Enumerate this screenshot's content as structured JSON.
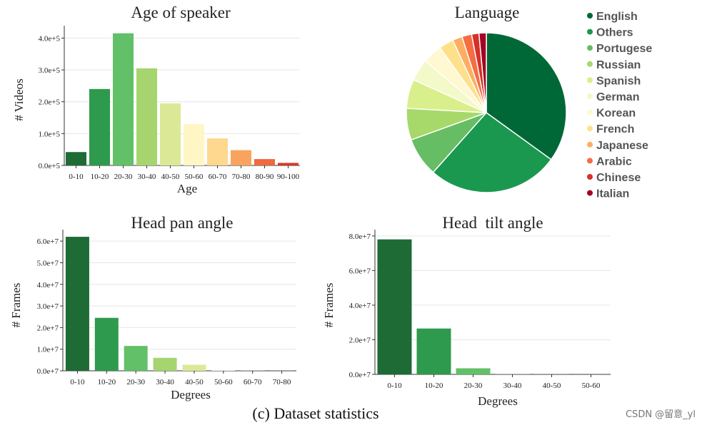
{
  "caption": "(c) Dataset statistics",
  "watermark": "CSDN @留意_yl",
  "chart_data": [
    {
      "id": "age",
      "type": "bar",
      "title": "Age of speaker",
      "xlabel": "Age",
      "ylabel": "# Videos",
      "categories": [
        "0-10",
        "10-20",
        "20-30",
        "30-40",
        "40-50",
        "50-60",
        "60-70",
        "70-80",
        "80-90",
        "90-100"
      ],
      "values": [
        42000,
        240000,
        415000,
        305000,
        195000,
        130000,
        85000,
        48000,
        20000,
        8000
      ],
      "colors": [
        "#1e6b35",
        "#2e9a4e",
        "#62c068",
        "#a6d56f",
        "#dbe996",
        "#fff6c6",
        "#fed88f",
        "#f9a45e",
        "#ef6a3f",
        "#d9382b"
      ],
      "yticks": [
        "0.0e+5",
        "1.0e+5",
        "2.0e+5",
        "3.0e+5",
        "4.0e+5"
      ],
      "ytick_values": [
        0,
        100000,
        200000,
        300000,
        400000
      ],
      "ylim": [
        0,
        430000
      ],
      "grid": true
    },
    {
      "id": "language",
      "type": "pie",
      "title": "Language",
      "categories": [
        "English",
        "Others",
        "Portugese",
        "Russian",
        "Spanish",
        "German",
        "Korean",
        "French",
        "Japanese",
        "Arabic",
        "Chinese",
        "Italian"
      ],
      "values": [
        35.5,
        27.0,
        8.0,
        6.5,
        6.0,
        4.5,
        4.0,
        3.0,
        2.0,
        2.0,
        1.5,
        1.5
      ],
      "colors": [
        "#006837",
        "#1a9850",
        "#66bd63",
        "#a6d96a",
        "#d9ef8b",
        "#f3f9c8",
        "#fff8d0",
        "#fee08b",
        "#fdae61",
        "#f46d43",
        "#d73027",
        "#a50026"
      ],
      "legend_position": "right"
    },
    {
      "id": "pan",
      "type": "bar",
      "title": "Head pan angle",
      "xlabel": "Degrees",
      "ylabel": "# Frames",
      "categories": [
        "0-10",
        "10-20",
        "20-30",
        "30-40",
        "40-50",
        "50-60",
        "60-70",
        "70-80"
      ],
      "values": [
        62000000,
        24500000,
        11500000,
        6000000,
        2800000,
        150000,
        60000,
        30000
      ],
      "colors": [
        "#1e6b35",
        "#2e9a4e",
        "#62c068",
        "#a6d56f",
        "#dbe996",
        "#f5f5dc",
        "#f5f5dc",
        "#f5f5dc"
      ],
      "yticks": [
        "0.0e+7",
        "1.0e+7",
        "2.0e+7",
        "3.0e+7",
        "4.0e+7",
        "5.0e+7",
        "6.0e+7"
      ],
      "ytick_values": [
        0,
        10000000,
        20000000,
        30000000,
        40000000,
        50000000,
        60000000
      ],
      "ylim": [
        0,
        64000000
      ],
      "grid": true
    },
    {
      "id": "tilt",
      "type": "bar",
      "title": "Head  tilt angle",
      "xlabel": "Degrees",
      "ylabel": "# Frames",
      "categories": [
        "0-10",
        "10-20",
        "20-30",
        "30-40",
        "40-50",
        "50-60"
      ],
      "values": [
        78000000,
        26500000,
        3500000,
        100000,
        50000,
        20000
      ],
      "colors": [
        "#1e6b35",
        "#2e9a4e",
        "#62c068",
        "#a6d56f",
        "#dbe996",
        "#f5f5dc"
      ],
      "yticks": [
        "0.0e+7",
        "2.0e+7",
        "4.0e+7",
        "6.0e+7",
        "8.0e+7"
      ],
      "ytick_values": [
        0,
        20000000,
        40000000,
        60000000,
        80000000
      ],
      "ylim": [
        0,
        82000000
      ],
      "grid": true
    }
  ]
}
